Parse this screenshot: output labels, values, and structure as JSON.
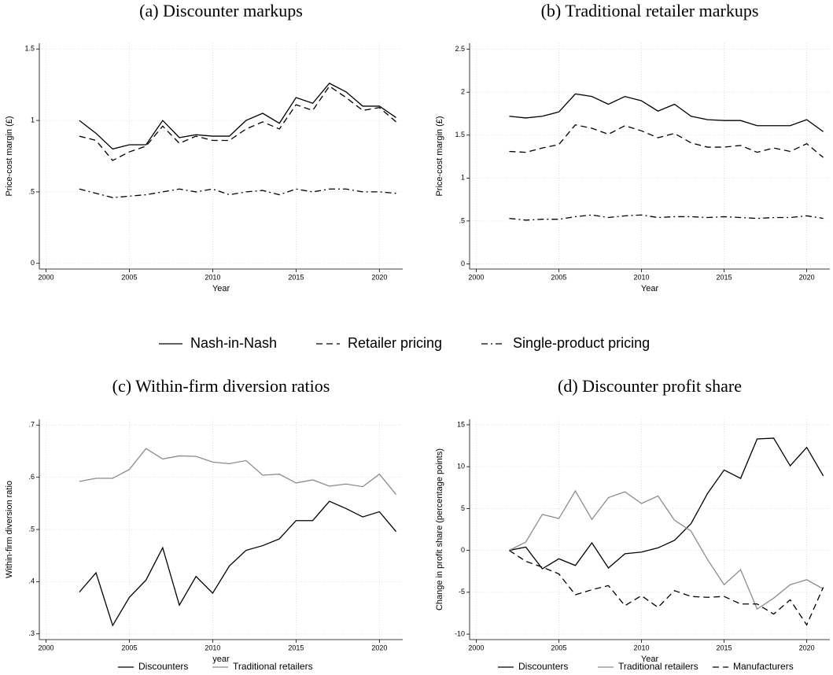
{
  "chart_data": [
    {
      "type": "line",
      "title": "(a) Discounter markups",
      "x_label": "Year",
      "y_label": "Price-cost margin (£)",
      "x": [
        2002,
        2003,
        2004,
        2005,
        2006,
        2007,
        2008,
        2009,
        2010,
        2011,
        2012,
        2013,
        2014,
        2015,
        2016,
        2017,
        2018,
        2019,
        2020,
        2021
      ],
      "xlim": [
        1999.6,
        2021.4
      ],
      "xticks": [
        2000,
        2005,
        2010,
        2015,
        2020
      ],
      "ylim": [
        -0.04,
        1.54
      ],
      "yticks": [
        0,
        {
          "value": 0.5,
          "label": ".5"
        },
        1,
        1.5
      ],
      "grid": true,
      "legend": "bottom",
      "series": [
        {
          "name": "Nash-in-Nash",
          "color": "#000000",
          "dash": "solid",
          "values": [
            1.0,
            0.91,
            0.8,
            0.83,
            0.83,
            1.0,
            0.88,
            0.9,
            0.89,
            0.89,
            1.0,
            1.05,
            0.98,
            1.16,
            1.12,
            1.26,
            1.2,
            1.1,
            1.1,
            1.02
          ]
        },
        {
          "name": "Retailer pricing",
          "color": "#000000",
          "dash": "dashed",
          "values": [
            0.89,
            0.86,
            0.72,
            0.78,
            0.82,
            0.96,
            0.84,
            0.89,
            0.86,
            0.86,
            0.94,
            0.99,
            0.94,
            1.11,
            1.07,
            1.24,
            1.16,
            1.07,
            1.09,
            0.99
          ]
        },
        {
          "name": "Single-product pricing",
          "color": "#000000",
          "dash": "dashdot",
          "values": [
            0.52,
            0.49,
            0.46,
            0.47,
            0.48,
            0.5,
            0.52,
            0.5,
            0.52,
            0.48,
            0.5,
            0.51,
            0.48,
            0.52,
            0.5,
            0.52,
            0.52,
            0.5,
            0.5,
            0.49
          ]
        }
      ]
    },
    {
      "type": "line",
      "title": "(b) Traditional retailer markups",
      "x_label": "Year",
      "y_label": "Price-cost margin (£)",
      "x": [
        2002,
        2003,
        2004,
        2005,
        2006,
        2007,
        2008,
        2009,
        2010,
        2011,
        2012,
        2013,
        2014,
        2015,
        2016,
        2017,
        2018,
        2019,
        2020,
        2021
      ],
      "xlim": [
        1999.6,
        2021.4
      ],
      "xticks": [
        2000,
        2005,
        2010,
        2015,
        2020
      ],
      "ylim": [
        -0.06,
        2.57
      ],
      "yticks": [
        0,
        {
          "value": 0.5,
          "label": ".5"
        },
        1,
        1.5,
        2,
        2.5
      ],
      "grid": true,
      "series": [
        {
          "color": "#000000",
          "dash": "solid",
          "values": [
            1.72,
            1.7,
            1.72,
            1.77,
            1.98,
            1.95,
            1.86,
            1.95,
            1.9,
            1.78,
            1.86,
            1.72,
            1.68,
            1.67,
            1.67,
            1.61,
            1.61,
            1.61,
            1.68,
            1.54
          ]
        },
        {
          "color": "#000000",
          "dash": "dashed",
          "values": [
            1.31,
            1.3,
            1.35,
            1.39,
            1.62,
            1.58,
            1.51,
            1.61,
            1.55,
            1.47,
            1.52,
            1.41,
            1.36,
            1.36,
            1.38,
            1.3,
            1.35,
            1.31,
            1.4,
            1.24
          ]
        },
        {
          "color": "#000000",
          "dash": "dashdot",
          "values": [
            0.53,
            0.51,
            0.52,
            0.52,
            0.55,
            0.57,
            0.54,
            0.56,
            0.57,
            0.54,
            0.55,
            0.55,
            0.54,
            0.55,
            0.54,
            0.53,
            0.54,
            0.54,
            0.56,
            0.53
          ]
        }
      ]
    },
    {
      "type": "line",
      "title": "(c) Within-firm diversion ratios",
      "x_label": "year",
      "y_label": "Within-firm diversion ratio",
      "x": [
        2002,
        2003,
        2004,
        2005,
        2006,
        2007,
        2008,
        2009,
        2010,
        2011,
        2012,
        2013,
        2014,
        2015,
        2016,
        2017,
        2018,
        2019,
        2020,
        2021
      ],
      "xlim": [
        1999.6,
        2021.4
      ],
      "xticks": [
        2000,
        2005,
        2010,
        2015,
        2020
      ],
      "ylim": [
        0.289,
        0.711
      ],
      "yticks": [
        {
          "value": 0.3,
          "label": ".3"
        },
        {
          "value": 0.4,
          "label": ".4"
        },
        {
          "value": 0.5,
          "label": ".5"
        },
        {
          "value": 0.6,
          "label": ".6"
        },
        {
          "value": 0.7,
          "label": ".7"
        }
      ],
      "grid": true,
      "legend": "bottom",
      "series": [
        {
          "name": "Discounters",
          "color": "#000000",
          "dash": "solid",
          "values": [
            0.38,
            0.417,
            0.316,
            0.37,
            0.403,
            0.465,
            0.355,
            0.41,
            0.378,
            0.43,
            0.46,
            0.469,
            0.482,
            0.517,
            0.517,
            0.554,
            0.54,
            0.524,
            0.534,
            0.496
          ]
        },
        {
          "name": "Traditional retailers",
          "color": "#8c8c8c",
          "dash": "solid",
          "values": [
            0.592,
            0.598,
            0.598,
            0.615,
            0.655,
            0.635,
            0.641,
            0.64,
            0.629,
            0.626,
            0.632,
            0.604,
            0.606,
            0.589,
            0.595,
            0.583,
            0.587,
            0.582,
            0.606,
            0.567
          ]
        }
      ]
    },
    {
      "type": "line",
      "title": "(d) Discounter profit share",
      "x_label": "Year",
      "y_label": "Change in profit share (percentage points)",
      "x": [
        2002,
        2003,
        2004,
        2005,
        2006,
        2007,
        2008,
        2009,
        2010,
        2011,
        2012,
        2013,
        2014,
        2015,
        2016,
        2017,
        2018,
        2019,
        2020,
        2021
      ],
      "xlim": [
        1999.6,
        2021.4
      ],
      "xticks": [
        2000,
        2005,
        2010,
        2015,
        2020
      ],
      "ylim": [
        -10.65,
        15.65
      ],
      "yticks": [
        -10,
        -5,
        0,
        5,
        10,
        15
      ],
      "grid": true,
      "legend": "bottom",
      "series": [
        {
          "name": "Discounters",
          "color": "#000000",
          "dash": "solid",
          "values": [
            0,
            0.4,
            -2.2,
            -1.0,
            -1.8,
            0.9,
            -2.1,
            -0.4,
            -0.2,
            0.3,
            1.2,
            3.2,
            6.8,
            9.6,
            8.6,
            13.3,
            13.4,
            10.1,
            12.3,
            8.9
          ]
        },
        {
          "name": "Traditional retailers",
          "color": "#8c8c8c",
          "dash": "solid",
          "values": [
            0,
            1.0,
            4.3,
            3.8,
            7.1,
            3.7,
            6.3,
            7.0,
            5.6,
            6.5,
            3.6,
            2.3,
            -1.1,
            -4.1,
            -2.3,
            -7.0,
            -5.7,
            -4.1,
            -3.5,
            -4.6
          ]
        },
        {
          "name": "Manufacturers",
          "color": "#000000",
          "dash": "dashed",
          "values": [
            0,
            -1.3,
            -2.0,
            -2.8,
            -5.3,
            -4.7,
            -4.2,
            -6.6,
            -5.4,
            -6.8,
            -4.8,
            -5.5,
            -5.6,
            -5.5,
            -6.4,
            -6.4,
            -7.6,
            -5.9,
            -8.9,
            -4.4
          ]
        }
      ]
    }
  ]
}
